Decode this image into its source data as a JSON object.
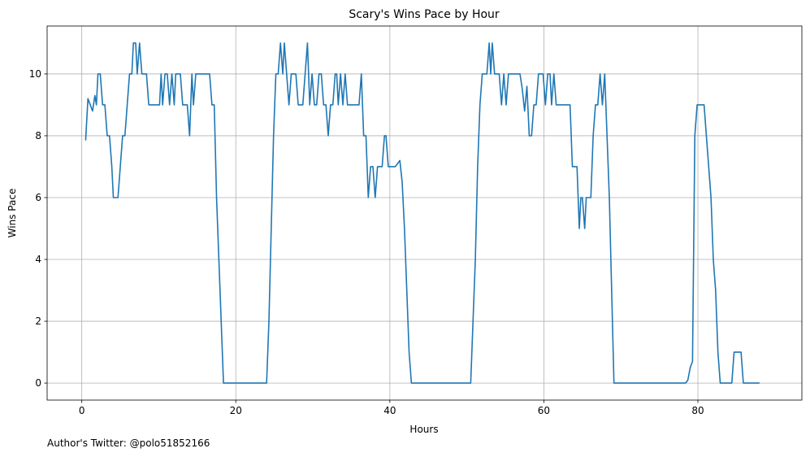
{
  "chart_data": {
    "type": "line",
    "title": "Scary's Wins Pace by Hour",
    "xlabel": "Hours",
    "ylabel": "Wins Pace",
    "xlim": [
      -4.5,
      93.5
    ],
    "ylim": [
      -0.55,
      11.55
    ],
    "xticks": [
      0,
      20,
      40,
      60,
      80
    ],
    "yticks": [
      0,
      2,
      4,
      6,
      8,
      10
    ],
    "grid": true,
    "line_color": "#1f77b4",
    "series": [
      {
        "points": [
          [
            0.5,
            7.85
          ],
          [
            0.8,
            9.2
          ],
          [
            1.1,
            9.0
          ],
          [
            1.4,
            8.8
          ],
          [
            1.7,
            9.3
          ],
          [
            1.9,
            9.0
          ],
          [
            2.1,
            10.0
          ],
          [
            2.4,
            10.0
          ],
          [
            2.7,
            9.0
          ],
          [
            3.0,
            9.0
          ],
          [
            3.3,
            8.0
          ],
          [
            3.6,
            8.0
          ],
          [
            3.9,
            7.0
          ],
          [
            4.1,
            6.0
          ],
          [
            4.4,
            6.0
          ],
          [
            4.7,
            6.0
          ],
          [
            5.0,
            7.0
          ],
          [
            5.3,
            8.0
          ],
          [
            5.6,
            8.0
          ],
          [
            5.9,
            9.0
          ],
          [
            6.2,
            10.0
          ],
          [
            6.5,
            10.0
          ],
          [
            6.7,
            11.0
          ],
          [
            7.0,
            11.0
          ],
          [
            7.2,
            10.0
          ],
          [
            7.5,
            11.0
          ],
          [
            7.8,
            10.0
          ],
          [
            8.1,
            10.0
          ],
          [
            8.4,
            10.0
          ],
          [
            8.7,
            9.0
          ],
          [
            9.0,
            9.0
          ],
          [
            9.3,
            9.0
          ],
          [
            9.6,
            9.0
          ],
          [
            9.9,
            9.0
          ],
          [
            10.1,
            9.0
          ],
          [
            10.3,
            10.0
          ],
          [
            10.5,
            9.0
          ],
          [
            10.8,
            10.0
          ],
          [
            11.1,
            10.0
          ],
          [
            11.4,
            9.0
          ],
          [
            11.7,
            10.0
          ],
          [
            12.0,
            9.0
          ],
          [
            12.2,
            10.0
          ],
          [
            12.5,
            10.0
          ],
          [
            12.8,
            10.0
          ],
          [
            13.1,
            9.0
          ],
          [
            13.4,
            9.0
          ],
          [
            13.7,
            9.0
          ],
          [
            14.0,
            8.0
          ],
          [
            14.3,
            10.0
          ],
          [
            14.5,
            9.0
          ],
          [
            14.8,
            10.0
          ],
          [
            15.1,
            10.0
          ],
          [
            15.4,
            10.0
          ],
          [
            15.7,
            10.0
          ],
          [
            16.0,
            10.0
          ],
          [
            16.3,
            10.0
          ],
          [
            16.6,
            10.0
          ],
          [
            16.9,
            9.0
          ],
          [
            17.2,
            9.0
          ],
          [
            17.5,
            6.0
          ],
          [
            17.8,
            4.0
          ],
          [
            18.1,
            2.0
          ],
          [
            18.4,
            0.0
          ],
          [
            20.0,
            0.0
          ],
          [
            22.0,
            0.0
          ],
          [
            24.0,
            0.0
          ],
          [
            24.3,
            2.0
          ],
          [
            24.6,
            5.0
          ],
          [
            24.9,
            8.0
          ],
          [
            25.2,
            10.0
          ],
          [
            25.5,
            10.0
          ],
          [
            25.8,
            11.0
          ],
          [
            26.1,
            10.0
          ],
          [
            26.3,
            11.0
          ],
          [
            26.6,
            10.0
          ],
          [
            26.9,
            9.0
          ],
          [
            27.2,
            10.0
          ],
          [
            27.5,
            10.0
          ],
          [
            27.8,
            10.0
          ],
          [
            28.1,
            9.0
          ],
          [
            28.4,
            9.0
          ],
          [
            28.7,
            9.0
          ],
          [
            29.0,
            10.0
          ],
          [
            29.3,
            11.0
          ],
          [
            29.6,
            9.0
          ],
          [
            29.9,
            10.0
          ],
          [
            30.2,
            9.0
          ],
          [
            30.5,
            9.0
          ],
          [
            30.8,
            10.0
          ],
          [
            31.1,
            10.0
          ],
          [
            31.4,
            9.0
          ],
          [
            31.7,
            9.0
          ],
          [
            32.0,
            8.0
          ],
          [
            32.3,
            9.0
          ],
          [
            32.6,
            9.0
          ],
          [
            32.9,
            10.0
          ],
          [
            33.1,
            10.0
          ],
          [
            33.3,
            9.0
          ],
          [
            33.6,
            10.0
          ],
          [
            33.9,
            9.0
          ],
          [
            34.2,
            10.0
          ],
          [
            34.5,
            9.0
          ],
          [
            34.8,
            9.0
          ],
          [
            35.1,
            9.0
          ],
          [
            35.4,
            9.0
          ],
          [
            35.7,
            9.0
          ],
          [
            36.0,
            9.0
          ],
          [
            36.3,
            10.0
          ],
          [
            36.6,
            8.0
          ],
          [
            36.9,
            8.0
          ],
          [
            37.2,
            6.0
          ],
          [
            37.5,
            7.0
          ],
          [
            37.8,
            7.0
          ],
          [
            38.1,
            6.0
          ],
          [
            38.4,
            7.0
          ],
          [
            38.7,
            7.0
          ],
          [
            39.0,
            7.0
          ],
          [
            39.3,
            8.0
          ],
          [
            39.5,
            8.0
          ],
          [
            39.8,
            7.0
          ],
          [
            40.1,
            7.0
          ],
          [
            40.4,
            7.0
          ],
          [
            40.7,
            7.0
          ],
          [
            41.0,
            7.1
          ],
          [
            41.3,
            7.2
          ],
          [
            41.6,
            6.5
          ],
          [
            41.9,
            5.0
          ],
          [
            42.2,
            3.0
          ],
          [
            42.5,
            1.0
          ],
          [
            42.8,
            0.0
          ],
          [
            45.0,
            0.0
          ],
          [
            48.0,
            0.0
          ],
          [
            50.5,
            0.0
          ],
          [
            50.8,
            2.0
          ],
          [
            51.1,
            4.0
          ],
          [
            51.4,
            7.0
          ],
          [
            51.7,
            9.0
          ],
          [
            52.0,
            10.0
          ],
          [
            52.3,
            10.0
          ],
          [
            52.6,
            10.0
          ],
          [
            52.9,
            11.0
          ],
          [
            53.1,
            10.0
          ],
          [
            53.3,
            11.0
          ],
          [
            53.6,
            10.0
          ],
          [
            53.9,
            10.0
          ],
          [
            54.2,
            10.0
          ],
          [
            54.5,
            9.0
          ],
          [
            54.8,
            10.0
          ],
          [
            55.1,
            9.0
          ],
          [
            55.4,
            10.0
          ],
          [
            55.7,
            10.0
          ],
          [
            56.0,
            10.0
          ],
          [
            56.3,
            10.0
          ],
          [
            56.6,
            10.0
          ],
          [
            56.9,
            10.0
          ],
          [
            57.2,
            9.5
          ],
          [
            57.5,
            8.8
          ],
          [
            57.8,
            9.6
          ],
          [
            58.1,
            8.0
          ],
          [
            58.4,
            8.0
          ],
          [
            58.7,
            9.0
          ],
          [
            59.0,
            9.0
          ],
          [
            59.3,
            10.0
          ],
          [
            59.6,
            10.0
          ],
          [
            59.9,
            10.0
          ],
          [
            60.2,
            9.0
          ],
          [
            60.5,
            10.0
          ],
          [
            60.8,
            10.0
          ],
          [
            61.0,
            9.0
          ],
          [
            61.3,
            10.0
          ],
          [
            61.6,
            9.0
          ],
          [
            61.9,
            9.0
          ],
          [
            62.2,
            9.0
          ],
          [
            62.5,
            9.0
          ],
          [
            62.8,
            9.0
          ],
          [
            63.1,
            9.0
          ],
          [
            63.4,
            9.0
          ],
          [
            63.7,
            7.0
          ],
          [
            64.0,
            7.0
          ],
          [
            64.3,
            7.0
          ],
          [
            64.6,
            5.0
          ],
          [
            64.8,
            6.0
          ],
          [
            65.0,
            6.0
          ],
          [
            65.3,
            5.0
          ],
          [
            65.5,
            6.0
          ],
          [
            65.8,
            6.0
          ],
          [
            66.1,
            6.0
          ],
          [
            66.4,
            8.0
          ],
          [
            66.7,
            9.0
          ],
          [
            67.0,
            9.0
          ],
          [
            67.3,
            10.0
          ],
          [
            67.6,
            9.0
          ],
          [
            67.9,
            10.0
          ],
          [
            68.2,
            8.0
          ],
          [
            68.5,
            6.0
          ],
          [
            68.8,
            3.0
          ],
          [
            69.1,
            0.0
          ],
          [
            71.0,
            0.0
          ],
          [
            73.0,
            0.0
          ],
          [
            75.0,
            0.0
          ],
          [
            78.4,
            0.0
          ],
          [
            78.7,
            0.1
          ],
          [
            79.0,
            0.5
          ],
          [
            79.3,
            0.7
          ],
          [
            79.6,
            8.0
          ],
          [
            79.9,
            9.0
          ],
          [
            80.2,
            9.0
          ],
          [
            80.5,
            9.0
          ],
          [
            80.8,
            9.0
          ],
          [
            81.1,
            8.0
          ],
          [
            81.4,
            7.0
          ],
          [
            81.7,
            6.0
          ],
          [
            82.0,
            4.0
          ],
          [
            82.3,
            3.0
          ],
          [
            82.6,
            1.0
          ],
          [
            82.9,
            0.0
          ],
          [
            83.2,
            0.0
          ],
          [
            83.5,
            0.0
          ],
          [
            83.8,
            0.0
          ],
          [
            84.1,
            0.0
          ],
          [
            84.4,
            0.0
          ],
          [
            84.7,
            1.0
          ],
          [
            85.0,
            1.0
          ],
          [
            85.3,
            1.0
          ],
          [
            85.6,
            1.0
          ],
          [
            85.9,
            0.0
          ],
          [
            86.2,
            0.0
          ],
          [
            88.0,
            0.0
          ],
          [
            90.0,
            0.0
          ],
          [
            92.0,
            0.0
          ],
          [
            93.5,
            0.0
          ]
        ]
      }
    ]
  },
  "footer": {
    "credit": "Author's Twitter: @polo51852166"
  }
}
